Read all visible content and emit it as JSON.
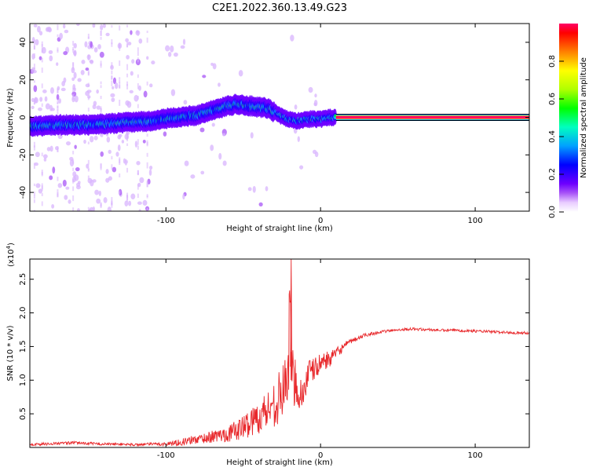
{
  "figure": {
    "title": "C2E1.2022.360.13.49.G23"
  },
  "chart_data": [
    {
      "type": "heatmap",
      "xlabel": "Height of straight line (km)",
      "ylabel": "Frequency (Hz)",
      "xlim": [
        -188,
        135
      ],
      "ylim": [
        -50,
        50
      ],
      "xticks": [
        -100,
        0,
        100
      ],
      "yticks": [
        -40,
        -20,
        0,
        20,
        40
      ],
      "colorbar": {
        "label": "Normalized spectral amplitude",
        "range": [
          0,
          1
        ],
        "ticks": [
          "0.0",
          "0.2",
          "0.4",
          "0.6",
          "0.8"
        ],
        "colormap": [
          "#ffffff",
          "#d8b4fe",
          "#a855f7",
          "#6d00ff",
          "#3a00ff",
          "#0000ff",
          "#0080ff",
          "#00e5ff",
          "#00ff80",
          "#00ff00",
          "#a0ff00",
          "#ffff00",
          "#ff8000",
          "#ff0000",
          "#ff0066"
        ]
      },
      "ridge": {
        "x": [
          -188,
          -170,
          -150,
          -130,
          -110,
          -95,
          -80,
          -65,
          -55,
          -45,
          -35,
          -28,
          -24,
          -20,
          -15,
          -10,
          -5,
          0,
          5,
          10,
          135
        ],
        "freq": [
          -5,
          -4,
          -4,
          -3,
          -2,
          0,
          1,
          5,
          7,
          6,
          5,
          2,
          0,
          -1,
          -2,
          -1,
          -1,
          -1,
          0,
          0,
          0
        ],
        "note": "strongest spectral ridge frequency vs height; x > 10 km is a saturated line at 0 Hz"
      }
    },
    {
      "type": "line",
      "xlabel": "Height of straight line (km)",
      "ylabel": "SNR (10 * v/v)",
      "y_scale_label": "(x10",
      "y_scale_exp": "4",
      "xlim": [
        -188,
        135
      ],
      "ylim": [
        0,
        2.8
      ],
      "xticks": [
        -100,
        0,
        100
      ],
      "yticks": [
        0.5,
        1.0,
        1.5,
        2.0,
        2.5
      ],
      "yticklabels": [
        "0.5",
        "1.0",
        "1.5",
        "2.0",
        "2.5"
      ],
      "series": [
        {
          "color": "#e8282b",
          "x": [
            -188,
            -180,
            -170,
            -160,
            -150,
            -140,
            -130,
            -120,
            -110,
            -100,
            -90,
            -80,
            -70,
            -60,
            -50,
            -45,
            -40,
            -35,
            -30,
            -25,
            -22,
            -20,
            -18,
            -15,
            -12,
            -10,
            -8,
            -5,
            -2,
            0,
            2,
            5,
            8,
            10,
            15,
            20,
            25,
            30,
            40,
            50,
            60,
            70,
            80,
            90,
            100,
            110,
            120,
            135
          ],
          "y": [
            0.04,
            0.05,
            0.06,
            0.07,
            0.06,
            0.05,
            0.05,
            0.04,
            0.05,
            0.05,
            0.08,
            0.12,
            0.16,
            0.2,
            0.3,
            0.38,
            0.45,
            0.55,
            0.65,
            0.8,
            1.0,
            1.6,
            1.1,
            0.9,
            0.75,
            0.95,
            1.05,
            1.15,
            1.2,
            1.25,
            1.3,
            1.3,
            1.35,
            1.4,
            1.5,
            1.58,
            1.63,
            1.68,
            1.72,
            1.75,
            1.76,
            1.75,
            1.74,
            1.74,
            1.73,
            1.72,
            1.71,
            1.7
          ],
          "noise_amp": [
            0.02,
            0.02,
            0.02,
            0.02,
            0.02,
            0.02,
            0.02,
            0.02,
            0.02,
            0.03,
            0.05,
            0.07,
            0.09,
            0.12,
            0.18,
            0.22,
            0.25,
            0.3,
            0.35,
            0.4,
            0.45,
            0.9,
            0.45,
            0.35,
            0.3,
            0.25,
            0.25,
            0.2,
            0.15,
            0.15,
            0.15,
            0.12,
            0.1,
            0.08,
            0.06,
            0.04,
            0.03,
            0.03,
            0.02,
            0.02,
            0.02,
            0.02,
            0.02,
            0.02,
            0.02,
            0.02,
            0.02,
            0.02
          ]
        }
      ]
    }
  ]
}
